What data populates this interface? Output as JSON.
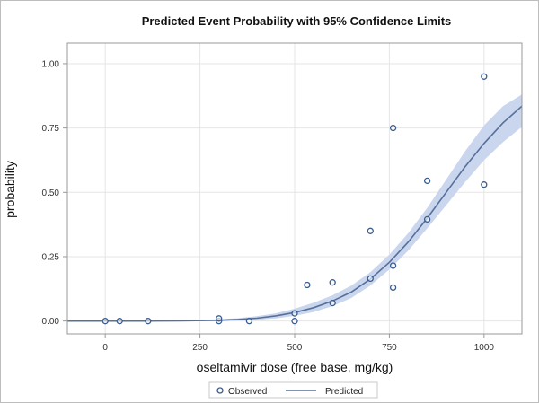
{
  "chart_data": {
    "type": "scatter",
    "title": "Predicted Event Probability with 95% Confidence Limits",
    "xlabel": "oseltamivir dose (free base, mg/kg)",
    "ylabel": "probability",
    "xlim": [
      -100,
      1100
    ],
    "ylim": [
      -0.05,
      1.08
    ],
    "x_ticks": [
      "0",
      "250",
      "500",
      "750",
      "1000"
    ],
    "x_tick_values": [
      0,
      250,
      500,
      750,
      1000
    ],
    "y_ticks": [
      "0.00",
      "0.25",
      "0.50",
      "0.75",
      "1.00"
    ],
    "y_tick_values": [
      0,
      0.25,
      0.5,
      0.75,
      1.0
    ],
    "grid": true,
    "legend_position": "bottom",
    "series": [
      {
        "name": "Observed",
        "kind": "markers",
        "color": "#3b5c8e",
        "points": [
          [
            0,
            0.0
          ],
          [
            38,
            0.0
          ],
          [
            113,
            0.0
          ],
          [
            300,
            0.0
          ],
          [
            300,
            0.01
          ],
          [
            380,
            0.0
          ],
          [
            500,
            0.0
          ],
          [
            500,
            0.03
          ],
          [
            533,
            0.14
          ],
          [
            600,
            0.07
          ],
          [
            600,
            0.15
          ],
          [
            700,
            0.35
          ],
          [
            700,
            0.165
          ],
          [
            760,
            0.75
          ],
          [
            760,
            0.215
          ],
          [
            760,
            0.13
          ],
          [
            850,
            0.545
          ],
          [
            850,
            0.395
          ],
          [
            1000,
            0.95
          ],
          [
            1000,
            0.53
          ]
        ]
      },
      {
        "name": "Predicted",
        "kind": "line",
        "color": "#56709a",
        "x": [
          -100,
          0,
          100,
          200,
          300,
          350,
          400,
          450,
          500,
          550,
          600,
          650,
          700,
          750,
          800,
          850,
          900,
          950,
          1000,
          1050,
          1100
        ],
        "y": [
          0.0,
          0.0,
          0.0,
          0.001,
          0.003,
          0.006,
          0.011,
          0.02,
          0.033,
          0.052,
          0.078,
          0.113,
          0.163,
          0.228,
          0.307,
          0.4,
          0.5,
          0.6,
          0.69,
          0.77,
          0.835
        ],
        "band_lower": [
          0.0,
          0.0,
          0.0,
          0.0,
          0.0,
          0.002,
          0.005,
          0.01,
          0.02,
          0.035,
          0.058,
          0.09,
          0.138,
          0.2,
          0.274,
          0.36,
          0.45,
          0.54,
          0.625,
          0.695,
          0.755
        ],
        "band_upper": [
          0.0,
          0.0,
          0.001,
          0.003,
          0.007,
          0.011,
          0.019,
          0.03,
          0.048,
          0.071,
          0.1,
          0.138,
          0.19,
          0.258,
          0.342,
          0.44,
          0.55,
          0.66,
          0.76,
          0.835,
          0.88
        ]
      }
    ],
    "colors": {
      "band": "#c9d6ee",
      "line": "#56709a",
      "marker": "#3b5c8e",
      "grid": "#e6e6e6",
      "axis": "#9a9a9a"
    }
  }
}
